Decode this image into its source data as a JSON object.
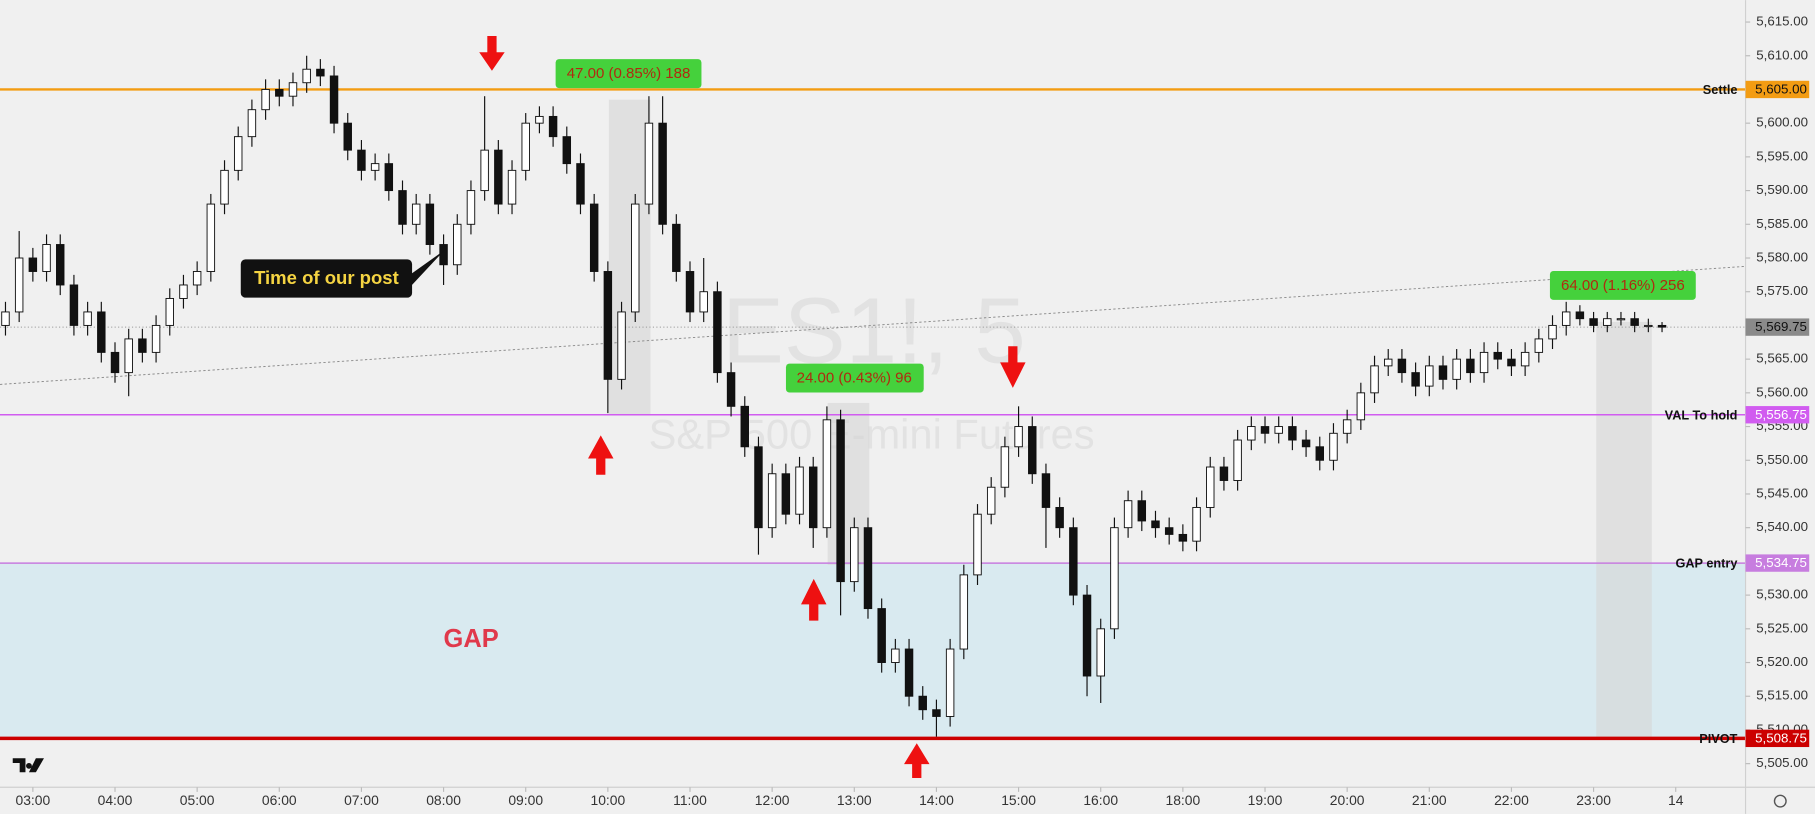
{
  "chart_data": {
    "type": "candlestick",
    "watermark": "ES1!, 5",
    "watermark_subtitle": "S&P 500 E-mini Futures",
    "up_color": "#ffffff",
    "down_color": "#111111",
    "open": [
      5570,
      5572,
      5580,
      5578,
      5582,
      5576,
      5570,
      5572,
      5566,
      5563,
      5568,
      5566,
      5570,
      5574,
      5576,
      5578,
      5588,
      5593,
      5598,
      5602,
      5605,
      5604,
      5606,
      5608,
      5607,
      5600,
      5596,
      5593,
      5594,
      5590,
      5585,
      5588,
      5582,
      5579,
      5585,
      5590,
      5596,
      5588,
      5593,
      5600,
      5601,
      5598,
      5594,
      5588,
      5578,
      5562,
      5572,
      5588,
      5600,
      5585,
      5578,
      5572,
      5575,
      5563,
      5558,
      5552,
      5540,
      5548,
      5542,
      5549,
      5540,
      5556,
      5532,
      5540,
      5528,
      5520,
      5522,
      5515,
      5513,
      5512,
      5522,
      5533,
      5542,
      5546,
      5552,
      5555,
      5548,
      5543,
      5540,
      5530,
      5518,
      5525,
      5540,
      5544,
      5541,
      5540,
      5539,
      5538,
      5543,
      5549,
      5547,
      5553,
      5555,
      5554,
      5555,
      5553,
      5552,
      5550,
      5554,
      5556,
      5560,
      5564,
      5565,
      5563,
      5561,
      5564,
      5562,
      5565,
      5563,
      5566,
      5565,
      5564,
      5566,
      5568,
      5570,
      5572,
      5571,
      5570,
      5571,
      5571,
      5570,
      5570
    ],
    "high": [
      5573.5,
      5584,
      5581.5,
      5583.5,
      5583.5,
      5577.5,
      5573.5,
      5573.5,
      5567.5,
      5569.5,
      5569.5,
      5571.5,
      5575.5,
      5577.5,
      5579.5,
      5589.5,
      5594.5,
      5599.5,
      5603.5,
      5606.5,
      5606.5,
      5607.5,
      5610,
      5609.5,
      5608.5,
      5601.5,
      5597.5,
      5595.5,
      5595.5,
      5591.5,
      5589.5,
      5589.5,
      5583.5,
      5586.5,
      5591.5,
      5604,
      5597.5,
      5594.5,
      5601.5,
      5602.5,
      5602.5,
      5599.5,
      5595.5,
      5589.5,
      5579.5,
      5573.5,
      5589.5,
      5604,
      5604,
      5586.5,
      5579.5,
      5580,
      5576.5,
      5564.5,
      5559.5,
      5553.5,
      5549.5,
      5549.5,
      5550.5,
      5550.5,
      5558,
      5557.5,
      5541.5,
      5541.5,
      5529.5,
      5523.5,
      5523.5,
      5516.5,
      5514.5,
      5523.5,
      5534.5,
      5543.5,
      5547.5,
      5553.5,
      5558,
      5556.5,
      5549.5,
      5544.5,
      5541.5,
      5531.5,
      5526.5,
      5541.5,
      5545.5,
      5545.5,
      5542.5,
      5541.5,
      5540.5,
      5544.5,
      5550.5,
      5550.5,
      5554.5,
      5556.5,
      5556.5,
      5556.5,
      5556.5,
      5554.5,
      5553.5,
      5555.5,
      5557.5,
      5561.5,
      5565.5,
      5566.5,
      5566.5,
      5564.5,
      5565.5,
      5565.5,
      5566.5,
      5566.5,
      5567.5,
      5567.5,
      5566.5,
      5567.5,
      5569.5,
      5571.5,
      5573.5,
      5573,
      5572,
      5572,
      5572,
      5572,
      5571,
      5570.5
    ],
    "low": [
      5568.5,
      5570.5,
      5576.5,
      5576.5,
      5574.5,
      5568.5,
      5568.5,
      5564.5,
      5561.5,
      5559.5,
      5564.5,
      5564.5,
      5568.5,
      5572.5,
      5574.5,
      5576.5,
      5586.5,
      5591.5,
      5596.5,
      5600.5,
      5602.5,
      5602.5,
      5604.5,
      5605.5,
      5598.5,
      5594.5,
      5591.5,
      5591.5,
      5588.5,
      5583.5,
      5583.5,
      5580.5,
      5576,
      5577.5,
      5583.5,
      5588.5,
      5586.5,
      5586.5,
      5591.5,
      5598.5,
      5596.5,
      5592.5,
      5586.5,
      5576.5,
      5557,
      5560.5,
      5570.5,
      5586.5,
      5583.5,
      5576.5,
      5570.5,
      5570.5,
      5561.5,
      5556.5,
      5550.5,
      5536,
      5538.5,
      5540.5,
      5540.5,
      5537,
      5538.5,
      5527,
      5530.5,
      5526.5,
      5518.5,
      5518.5,
      5513.5,
      5511.5,
      5509,
      5510.5,
      5520.5,
      5531.5,
      5540.5,
      5544.5,
      5550.5,
      5546.5,
      5537,
      5538.5,
      5528.5,
      5515,
      5514,
      5523.5,
      5538.5,
      5539.5,
      5538.5,
      5537.5,
      5536.5,
      5536.5,
      5541.5,
      5545.5,
      5545.5,
      5551.5,
      5552.5,
      5552.5,
      5551.5,
      5550.5,
      5548.5,
      5548.5,
      5552.5,
      5554.5,
      5558.5,
      5562.5,
      5561.5,
      5559.5,
      5559.5,
      5560.5,
      5560.5,
      5561.5,
      5561.5,
      5563.5,
      5562.5,
      5562.5,
      5564.5,
      5566.5,
      5568.5,
      5570,
      5569,
      5569,
      5570,
      5569,
      5569,
      5569
    ],
    "close": [
      5572,
      5580,
      5578,
      5582,
      5576,
      5570,
      5572,
      5566,
      5563,
      5568,
      5566,
      5570,
      5574,
      5576,
      5578,
      5588,
      5593,
      5598,
      5602,
      5605,
      5604,
      5606,
      5608,
      5607,
      5600,
      5596,
      5593,
      5594,
      5590,
      5585,
      5588,
      5582,
      5579,
      5585,
      5590,
      5596,
      5588,
      5593,
      5600,
      5601,
      5598,
      5594,
      5588,
      5578,
      5562,
      5572,
      5588,
      5600,
      5585,
      5578,
      5572,
      5575,
      5563,
      5558,
      5552,
      5540,
      5548,
      5542,
      5549,
      5540,
      5556,
      5532,
      5540,
      5528,
      5520,
      5522,
      5515,
      5513,
      5512,
      5522,
      5533,
      5542,
      5546,
      5552,
      5555,
      5548,
      5543,
      5540,
      5530,
      5518,
      5525,
      5540,
      5544,
      5541,
      5540,
      5539,
      5538,
      5543,
      5549,
      5547,
      5553,
      5555,
      5554,
      5555,
      5553,
      5552,
      5550,
      5554,
      5556,
      5560,
      5564,
      5565,
      5563,
      5561,
      5564,
      5562,
      5565,
      5563,
      5566,
      5565,
      5564,
      5566,
      5568,
      5570,
      5572,
      5571,
      5570,
      5571,
      5571,
      5570,
      5570,
      5569.75
    ],
    "xlim": [
      -0.4,
      127.1
    ],
    "xticks": [
      {
        "value": 2,
        "label": "03:00"
      },
      {
        "value": 8,
        "label": "04:00"
      },
      {
        "value": 14,
        "label": "05:00"
      },
      {
        "value": 20,
        "label": "06:00"
      },
      {
        "value": 26,
        "label": "07:00"
      },
      {
        "value": 32,
        "label": "08:00"
      },
      {
        "value": 38,
        "label": "09:00"
      },
      {
        "value": 44,
        "label": "10:00"
      },
      {
        "value": 50,
        "label": "11:00"
      },
      {
        "value": 56,
        "label": "12:00"
      },
      {
        "value": 62,
        "label": "13:00"
      },
      {
        "value": 68,
        "label": "14:00"
      },
      {
        "value": 74,
        "label": "15:00"
      },
      {
        "value": 80,
        "label": "16:00"
      },
      {
        "value": 86,
        "label": "18:00"
      },
      {
        "value": 92,
        "label": "19:00"
      },
      {
        "value": 98,
        "label": "20:00"
      },
      {
        "value": 104,
        "label": "21:00"
      },
      {
        "value": 110,
        "label": "22:00"
      },
      {
        "value": 116,
        "label": "23:00"
      },
      {
        "value": 122,
        "label": "14"
      }
    ],
    "ylim": [
      5501.5,
      5618.25
    ],
    "yticks": [
      {
        "value": 5505,
        "label": "5,505.00"
      },
      {
        "value": 5510,
        "label": "5,510.00"
      },
      {
        "value": 5515,
        "label": "5,515.00"
      },
      {
        "value": 5520,
        "label": "5,520.00"
      },
      {
        "value": 5525,
        "label": "5,525.00"
      },
      {
        "value": 5530,
        "label": "5,530.00"
      },
      {
        "value": 5535,
        "label": "5,535.00"
      },
      {
        "value": 5540,
        "label": "5,540.00"
      },
      {
        "value": 5545,
        "label": "5,545.00"
      },
      {
        "value": 5550,
        "label": "5,550.00"
      },
      {
        "value": 5555,
        "label": "5,555.00"
      },
      {
        "value": 5560,
        "label": "5,560.00"
      },
      {
        "value": 5565,
        "label": "5,565.00"
      },
      {
        "value": 5570,
        "label": "5,570.00"
      },
      {
        "value": 5575,
        "label": "5,575.00"
      },
      {
        "value": 5580,
        "label": "5,580.00"
      },
      {
        "value": 5585,
        "label": "5,585.00"
      },
      {
        "value": 5590,
        "label": "5,590.00"
      },
      {
        "value": 5595,
        "label": "5,595.00"
      },
      {
        "value": 5600,
        "label": "5,600.00"
      },
      {
        "value": 5605,
        "label": "5,605.00"
      },
      {
        "value": 5610,
        "label": "5,610.00"
      },
      {
        "value": 5615,
        "label": "5,615.00"
      }
    ],
    "grid": false,
    "levels": [
      {
        "name": "Settle",
        "value": 5605,
        "value_label": "5,605.00",
        "color": "#f39c12",
        "text_color": "#111111",
        "width": 2
      },
      {
        "name": "VAL To hold",
        "value": 5556.75,
        "value_label": "5,556.75",
        "color": "#d15cf0",
        "text_color": "#ffffff",
        "width": 1.3
      },
      {
        "name": "GAP entry",
        "value": 5534.75,
        "value_label": "5,534.75",
        "color": "#c77ddf",
        "text_color": "#ffffff",
        "width": 1.3
      },
      {
        "name": "PIVOT",
        "value": 5508.75,
        "value_label": "5,508.75",
        "color": "#cc0000",
        "text_color": "#ffffff",
        "width": 3
      }
    ],
    "last_price": {
      "value": 5569.75,
      "label": "5,569.75"
    },
    "annotations": [
      "47.00 (0.85%) 188",
      "24.00 (0.43%) 96",
      "64.00 (1.16%) 256",
      "Time of our post",
      "GAP"
    ]
  }
}
